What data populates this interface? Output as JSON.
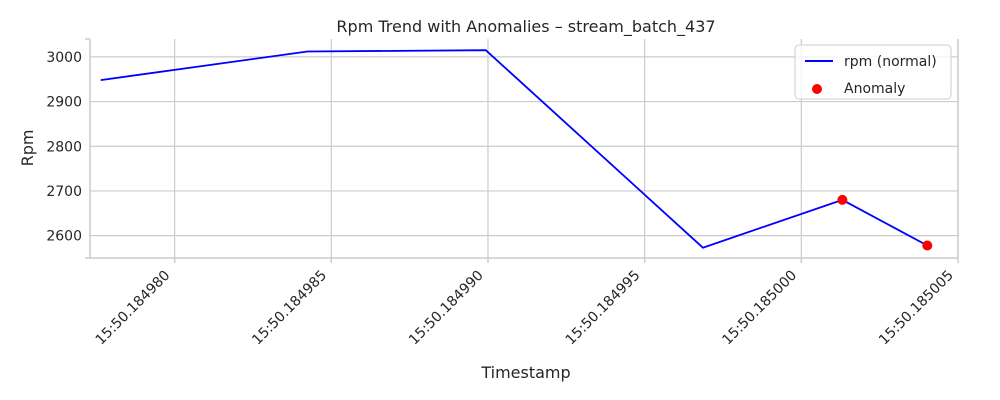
{
  "chart_data": {
    "type": "line",
    "title": "Rpm Trend with Anomalies – stream_batch_437",
    "xlabel": "Timestamp",
    "ylabel": "Rpm",
    "x_tick_labels": [
      "15:50.184980",
      "15:50.184985",
      "15:50.184990",
      "15:50.184995",
      "15:50.185000",
      "15:50.185005"
    ],
    "x_tick_values": [
      4.98,
      4.985,
      4.99,
      4.995,
      5.0,
      5.005
    ],
    "y_ticks": [
      2600,
      2700,
      2800,
      2900,
      3000
    ],
    "xlim": [
      4.9773,
      5.005
    ],
    "ylim": [
      2550,
      3040
    ],
    "grid": true,
    "legend_position": "top-right",
    "series": [
      {
        "name": "rpm (normal)",
        "kind": "line",
        "color": "#0000ff",
        "x": [
          4.97764,
          4.98424,
          4.98993,
          4.99686,
          5.00131,
          5.00402
        ],
        "y": [
          2948,
          3012,
          3015,
          2573,
          2680,
          2578
        ]
      },
      {
        "name": "Anomaly",
        "kind": "scatter",
        "color": "#ff0000",
        "x": [
          5.00131,
          5.00402
        ],
        "y": [
          2680,
          2578
        ]
      }
    ]
  }
}
